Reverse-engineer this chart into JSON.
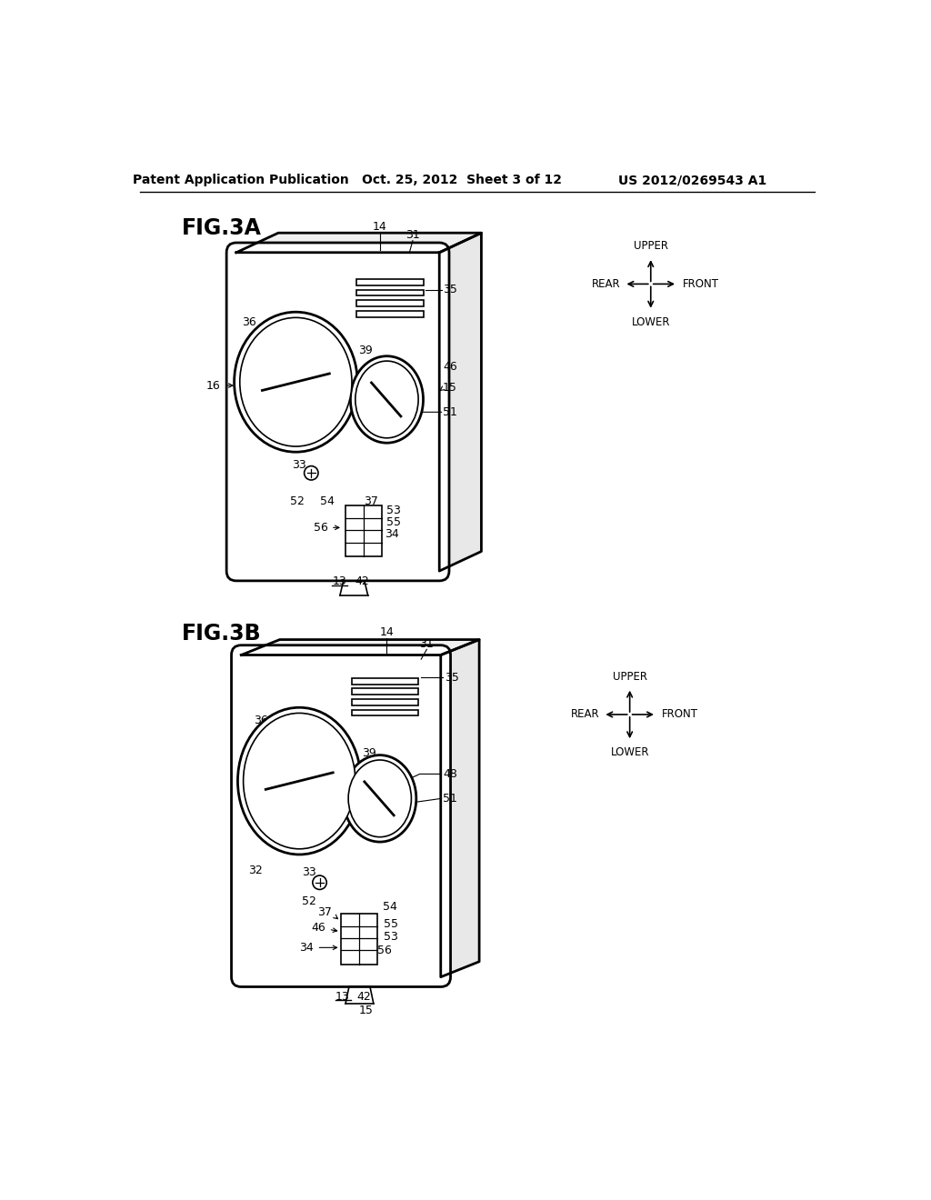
{
  "bg_color": "#ffffff",
  "lc": "#000000",
  "header_left": "Patent Application Publication",
  "header_mid": "Oct. 25, 2012  Sheet 3 of 12",
  "header_right": "US 2012/0269543 A1",
  "fig3a_label": "FIG.3A",
  "fig3b_label": "FIG.3B"
}
